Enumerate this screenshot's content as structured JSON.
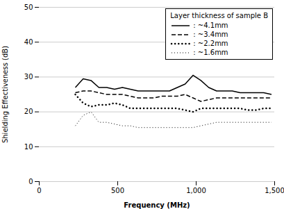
{
  "chart_data": {
    "type": "line",
    "title": "Layer thickness of sample B",
    "xlabel": "Frequency (MHz)",
    "ylabel": "Shielding Effectiveness (dB)",
    "xlim": [
      0,
      1500
    ],
    "ylim": [
      0,
      50
    ],
    "xticks": [
      0,
      500,
      1000,
      1500
    ],
    "yticks": [
      0,
      10,
      20,
      30,
      40,
      50
    ],
    "grid": "y",
    "legend": "upper right",
    "x": [
      230,
      280,
      330,
      380,
      430,
      480,
      530,
      580,
      630,
      680,
      730,
      780,
      830,
      880,
      930,
      980,
      1030,
      1080,
      1130,
      1180,
      1230,
      1280,
      1330,
      1380,
      1430,
      1480
    ],
    "series": [
      {
        "name": ": ~4.1mm",
        "color": "#000000",
        "line_style": "solid",
        "values": [
          27,
          29.5,
          29,
          27,
          27,
          26.5,
          27,
          26.5,
          26,
          26,
          26,
          26,
          26,
          27,
          28,
          30.5,
          29,
          27,
          26,
          26,
          26,
          25.5,
          25.5,
          25.5,
          25.5,
          25
        ]
      },
      {
        "name": ": ~3.4mm",
        "color": "#000000",
        "line_style": "dashed",
        "values": [
          25.5,
          26,
          26,
          25.5,
          25,
          25,
          25,
          24.5,
          24,
          24,
          24,
          24.5,
          24.5,
          24.5,
          25,
          24,
          23,
          23.5,
          24,
          24,
          24,
          24,
          24,
          24,
          24,
          24
        ]
      },
      {
        "name": ": ~2.2mm",
        "color": "#000000",
        "line_style": "bold_dotted",
        "values": [
          25,
          22.5,
          21.5,
          22,
          22,
          22.5,
          22,
          21,
          21,
          21,
          21,
          21,
          21,
          21,
          20.5,
          20,
          21,
          21,
          21,
          21,
          21,
          21,
          20.5,
          20.5,
          21,
          21
        ]
      },
      {
        "name": ": ~1.6mm",
        "color": "#000000",
        "line_style": "dotted",
        "values": [
          16,
          19,
          20,
          17,
          17,
          16.5,
          16,
          16,
          15.5,
          15.5,
          15.5,
          15.5,
          15.5,
          15.5,
          15.5,
          15.5,
          16,
          16.5,
          17,
          17,
          17,
          17,
          17,
          17,
          17,
          17
        ]
      }
    ]
  }
}
